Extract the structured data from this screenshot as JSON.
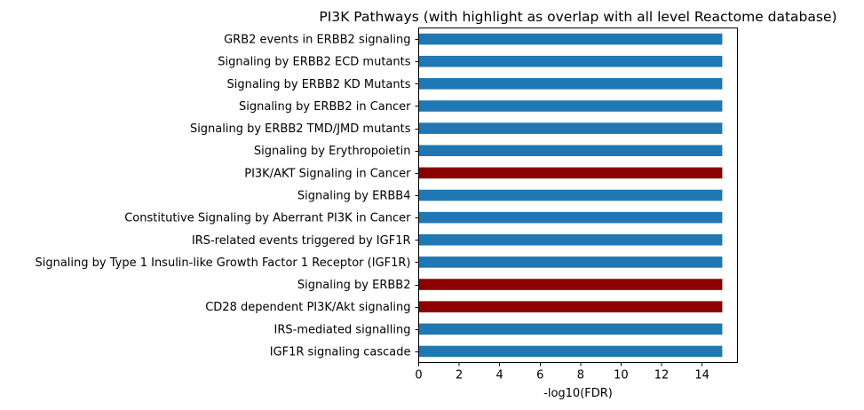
{
  "chart_data": {
    "type": "bar",
    "orientation": "horizontal",
    "title": "PI3K Pathways (with highlight as overlap with all level Reactome database)",
    "xlabel": "-log10(FDR)",
    "ylabel": "",
    "xlim": [
      0,
      15.75
    ],
    "xticks": [
      0,
      2,
      4,
      6,
      8,
      10,
      12,
      14
    ],
    "grid": false,
    "legend": "none",
    "colors": {
      "default": "#1f77b4",
      "highlight": "#8b0000"
    },
    "categories": [
      "GRB2 events in ERBB2 signaling",
      "Signaling by ERBB2 ECD mutants",
      "Signaling by ERBB2 KD Mutants",
      "Signaling by ERBB2 in Cancer",
      "Signaling by ERBB2 TMD/JMD mutants",
      "Signaling by Erythropoietin",
      "PI3K/AKT Signaling in Cancer",
      "Signaling by ERBB4",
      "Constitutive Signaling by Aberrant PI3K in Cancer",
      "IRS-related events triggered by IGF1R",
      "Signaling by Type 1 Insulin-like Growth Factor 1 Receptor (IGF1R)",
      "Signaling by ERBB2",
      "CD28 dependent PI3K/Akt signaling",
      "IRS-mediated signalling",
      "IGF1R signaling cascade"
    ],
    "values": [
      15,
      15,
      15,
      15,
      15,
      15,
      15,
      15,
      15,
      15,
      15,
      15,
      15,
      15,
      15
    ],
    "highlighted": [
      false,
      false,
      false,
      false,
      false,
      false,
      true,
      false,
      false,
      false,
      false,
      true,
      true,
      false,
      false
    ]
  }
}
